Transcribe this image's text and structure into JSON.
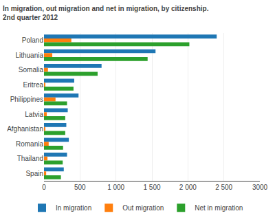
{
  "chart_data": {
    "type": "bar",
    "orientation": "horizontal",
    "title": "In migration, out migration and net in migration, by citizenship.",
    "subtitle": "2nd quarter 2012",
    "categories": [
      "Poland",
      "Lithuania",
      "Somalia",
      "Eritrea",
      "Philippines",
      "Latvia",
      "Afghanistan",
      "Romania",
      "Thailand",
      "Spain"
    ],
    "series": [
      {
        "name": "In migration",
        "values": [
          2400,
          1550,
          800,
          420,
          480,
          330,
          310,
          345,
          320,
          275
        ]
      },
      {
        "name": "Out migration",
        "values": [
          380,
          115,
          55,
          18,
          160,
          38,
          12,
          65,
          48,
          30
        ]
      },
      {
        "name": "Net in migration",
        "values": [
          2020,
          1440,
          745,
          410,
          320,
          295,
          295,
          265,
          260,
          235
        ]
      }
    ],
    "xlim": [
      0,
      3000
    ],
    "xticks": [
      0,
      500,
      {
        "value": 1000,
        "label": "1 000"
      },
      {
        "value": 1500,
        "label": "1 500"
      },
      {
        "value": 2000,
        "label": "2 000"
      },
      {
        "value": 2500,
        "label": "2 500"
      },
      3000
    ],
    "grid": true,
    "legend": "bottom"
  }
}
